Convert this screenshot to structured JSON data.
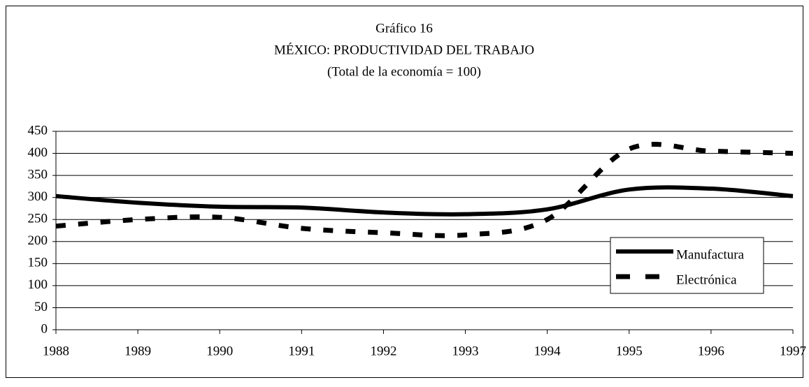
{
  "chart_data": {
    "type": "line",
    "title": "Gráfico 16",
    "subtitle": "MÉXICO:  PRODUCTIVIDAD DEL TRABAJO",
    "note": "(Total de la economía = 100)",
    "x": [
      1988,
      1989,
      1990,
      1991,
      1992,
      1993,
      1994,
      1995,
      1996,
      1997
    ],
    "xlim": [
      1988,
      1997
    ],
    "xticks": [
      1988,
      1989,
      1990,
      1991,
      1992,
      1993,
      1994,
      1995,
      1996,
      1997
    ],
    "ylim": [
      0,
      450
    ],
    "yticks": [
      0,
      50,
      100,
      150,
      200,
      250,
      300,
      350,
      400,
      450
    ],
    "grid": true,
    "legend": "lower right",
    "series": [
      {
        "name": "Manufactura",
        "color": "#000000",
        "dash": "solid",
        "values": [
          303,
          288,
          279,
          277,
          266,
          262,
          273,
          318,
          320,
          303
        ]
      },
      {
        "name": "Electrónica",
        "color": "#000000",
        "dash": "dashed",
        "values": [
          235,
          250,
          255,
          230,
          220,
          215,
          250,
          410,
          405,
          400
        ]
      }
    ]
  }
}
